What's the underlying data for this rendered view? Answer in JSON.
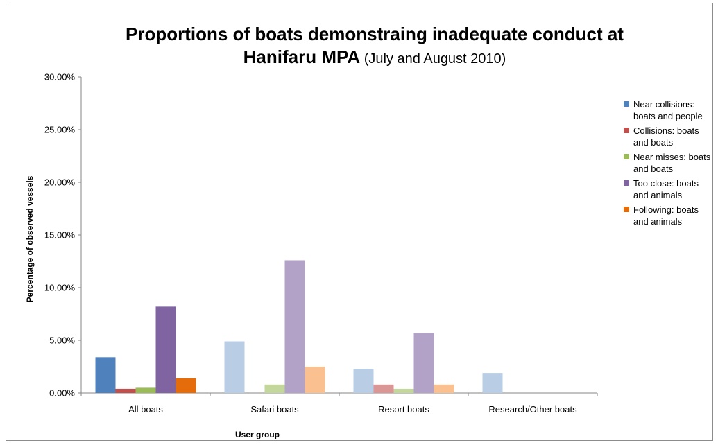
{
  "chart_data": {
    "type": "bar",
    "title_line1": "Proportions of boats demonstraing inadequate conduct at",
    "title_line2_bold": "Hanifaru MPA",
    "title_line2_rest": " (July and August 2010)",
    "xlabel": "User group",
    "ylabel": "Percentage of  observed vessels",
    "ylim": [
      0,
      0.3
    ],
    "yticks": [
      "0.00%",
      "5.00%",
      "10.00%",
      "15.00%",
      "20.00%",
      "25.00%",
      "30.00%"
    ],
    "grid": false,
    "legend_position": "right",
    "categories": [
      "All boats",
      "Safari boats",
      "Resort boats",
      "Research/Other boats"
    ],
    "series": [
      {
        "name": "Near collisions: boats and  people",
        "legend_lines": [
          "Near collisions:",
          "boats and  people"
        ],
        "values": [
          0.034,
          0.049,
          0.023,
          0.019
        ]
      },
      {
        "name": "Collisions: boats and boats",
        "legend_lines": [
          "Collisions: boats",
          "and boats"
        ],
        "values": [
          0.004,
          0.0,
          0.008,
          0.0
        ]
      },
      {
        "name": "Near misses:  boats and boats",
        "legend_lines": [
          "Near misses:  boats",
          "and boats"
        ],
        "values": [
          0.005,
          0.008,
          0.004,
          0.0
        ]
      },
      {
        "name": "Too close: boats and animals",
        "legend_lines": [
          "Too close: boats",
          "and animals"
        ],
        "values": [
          0.082,
          0.126,
          0.057,
          0.0
        ]
      },
      {
        "name": "Following: boats and animals",
        "legend_lines": [
          "Following: boats",
          "and animals"
        ],
        "values": [
          0.014,
          0.025,
          0.008,
          0.0
        ]
      }
    ],
    "colors": {
      "all_boats": [
        "#4f81bd",
        "#c0504d",
        "#9bbb59",
        "#8064a2",
        "#e46c0a"
      ],
      "other_groups": [
        "#b9cde5",
        "#d99694",
        "#c3d69b",
        "#b3a2c7",
        "#fac090"
      ],
      "legend": [
        "#4f81bd",
        "#c0504d",
        "#9bbb59",
        "#8064a2",
        "#e46c0a"
      ]
    }
  }
}
